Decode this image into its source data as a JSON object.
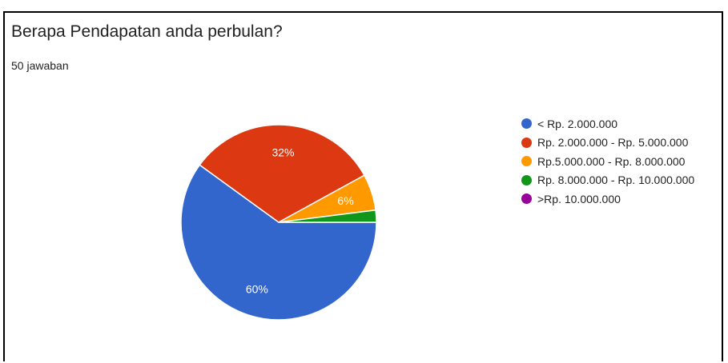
{
  "title": "Berapa Pendapatan anda perbulan?",
  "subtitle": "50 jawaban",
  "chart_data": {
    "type": "pie",
    "total_responses": 50,
    "slices": [
      {
        "label": "< Rp. 2.000.000",
        "value": 60,
        "display": "60%",
        "color": "#3366cc"
      },
      {
        "label": "Rp. 2.000.000 - Rp. 5.000.000",
        "value": 32,
        "display": "32%",
        "color": "#dc3912"
      },
      {
        "label": "Rp.5.000.000 - Rp. 8.000.000",
        "value": 6,
        "display": "6%",
        "color": "#ff9900"
      },
      {
        "label": "Rp. 8.000.000 - Rp. 10.000.000",
        "value": 2,
        "display": "",
        "color": "#109618"
      },
      {
        "label": ">Rp. 10.000.000",
        "value": 0,
        "display": "",
        "color": "#990099"
      }
    ],
    "legend_position": "right"
  }
}
